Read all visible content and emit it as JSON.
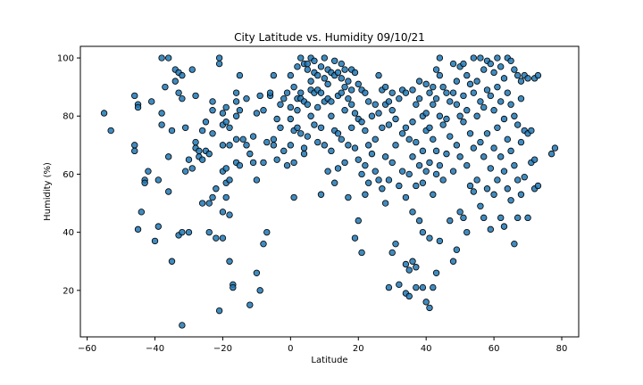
{
  "chart_data": {
    "type": "scatter",
    "title": "City Latitude vs. Humidity 09/10/21",
    "xlabel": "Latitude",
    "ylabel": "Humidity (%)",
    "xlim": [
      -62,
      85
    ],
    "ylim": [
      4,
      104
    ],
    "xticks": [
      -60,
      -40,
      -20,
      0,
      20,
      40,
      60,
      80
    ],
    "yticks": [
      20,
      40,
      60,
      80,
      100
    ],
    "grid": false,
    "marker_fill": "#1f77b4",
    "marker_edge": "#000000",
    "points": [
      [
        -55,
        81
      ],
      [
        -53,
        75
      ],
      [
        -46,
        70
      ],
      [
        -46,
        68
      ],
      [
        -46,
        87
      ],
      [
        -45,
        84
      ],
      [
        -45,
        83
      ],
      [
        -45,
        41
      ],
      [
        -44,
        47
      ],
      [
        -43,
        58
      ],
      [
        -43,
        57
      ],
      [
        -42,
        61
      ],
      [
        -41,
        85
      ],
      [
        -40,
        37
      ],
      [
        -39,
        42
      ],
      [
        -39,
        58
      ],
      [
        -38,
        100
      ],
      [
        -38,
        81
      ],
      [
        -38,
        77
      ],
      [
        -37,
        90
      ],
      [
        -36,
        100
      ],
      [
        -36,
        54
      ],
      [
        -36,
        66
      ],
      [
        -35,
        30
      ],
      [
        -35,
        75
      ],
      [
        -34,
        96
      ],
      [
        -34,
        92
      ],
      [
        -33,
        95
      ],
      [
        -33,
        88
      ],
      [
        -33,
        39
      ],
      [
        -32,
        8
      ],
      [
        -32,
        40
      ],
      [
        -32,
        94
      ],
      [
        -32,
        86
      ],
      [
        -31,
        76
      ],
      [
        -31,
        61
      ],
      [
        -30,
        65
      ],
      [
        -30,
        40
      ],
      [
        -29,
        62
      ],
      [
        -29,
        96
      ],
      [
        -28,
        87
      ],
      [
        -28,
        71
      ],
      [
        -28,
        69
      ],
      [
        -27,
        68
      ],
      [
        -27,
        66
      ],
      [
        -26,
        75
      ],
      [
        -26,
        65
      ],
      [
        -26,
        50
      ],
      [
        -25,
        78
      ],
      [
        -25,
        68
      ],
      [
        -24,
        67
      ],
      [
        -24,
        50
      ],
      [
        -24,
        40
      ],
      [
        -23,
        82
      ],
      [
        -23,
        85
      ],
      [
        -23,
        74
      ],
      [
        -23,
        52
      ],
      [
        -22,
        55
      ],
      [
        -22,
        38
      ],
      [
        -21,
        13
      ],
      [
        -21,
        100
      ],
      [
        -21,
        98
      ],
      [
        -20,
        81
      ],
      [
        -20,
        77
      ],
      [
        -20,
        70
      ],
      [
        -20,
        61
      ],
      [
        -20,
        47
      ],
      [
        -20,
        38
      ],
      [
        -19,
        83
      ],
      [
        -19,
        78
      ],
      [
        -19,
        62
      ],
      [
        -19,
        57
      ],
      [
        -19,
        52
      ],
      [
        -18,
        76
      ],
      [
        -18,
        70
      ],
      [
        -18,
        58
      ],
      [
        -18,
        46
      ],
      [
        -18,
        30
      ],
      [
        -17,
        22
      ],
      [
        -17,
        21
      ],
      [
        -16,
        88
      ],
      [
        -16,
        85
      ],
      [
        -16,
        80
      ],
      [
        -16,
        72
      ],
      [
        -16,
        64
      ],
      [
        -15,
        94
      ],
      [
        -15,
        82
      ],
      [
        -15,
        63
      ],
      [
        -14,
        72
      ],
      [
        -13,
        70
      ],
      [
        -13,
        86
      ],
      [
        -12,
        67
      ],
      [
        -12,
        15
      ],
      [
        -11,
        73
      ],
      [
        -11,
        64
      ],
      [
        -10,
        81
      ],
      [
        -10,
        58
      ],
      [
        -10,
        26
      ],
      [
        -9,
        20
      ],
      [
        -9,
        87
      ],
      [
        -8,
        82
      ],
      [
        -8,
        64
      ],
      [
        -8,
        36
      ],
      [
        -7,
        71
      ],
      [
        -7,
        40
      ],
      [
        -6,
        87
      ],
      [
        -6,
        88
      ],
      [
        -5,
        72
      ],
      [
        -5,
        94
      ],
      [
        -5,
        70
      ],
      [
        -4,
        79
      ],
      [
        -4,
        65
      ],
      [
        -3,
        76
      ],
      [
        -3,
        84
      ],
      [
        -2,
        86
      ],
      [
        -2,
        68
      ],
      [
        -1,
        88
      ],
      [
        -1,
        63
      ],
      [
        0,
        94
      ],
      [
        0,
        83
      ],
      [
        0,
        79
      ],
      [
        0,
        70
      ],
      [
        1,
        90
      ],
      [
        1,
        75
      ],
      [
        1,
        64
      ],
      [
        1,
        52
      ],
      [
        2,
        97
      ],
      [
        2,
        86
      ],
      [
        2,
        82
      ],
      [
        2,
        76
      ],
      [
        3,
        100
      ],
      [
        3,
        88
      ],
      [
        3,
        86
      ],
      [
        3,
        74
      ],
      [
        4,
        98
      ],
      [
        4,
        85
      ],
      [
        4,
        69
      ],
      [
        4,
        67
      ],
      [
        5,
        98
      ],
      [
        5,
        96
      ],
      [
        5,
        84
      ],
      [
        5,
        73
      ],
      [
        6,
        100
      ],
      [
        6,
        92
      ],
      [
        6,
        89
      ],
      [
        6,
        80
      ],
      [
        7,
        99
      ],
      [
        7,
        95
      ],
      [
        7,
        88
      ],
      [
        7,
        77
      ],
      [
        8,
        94
      ],
      [
        8,
        89
      ],
      [
        8,
        83
      ],
      [
        8,
        71
      ],
      [
        9,
        97
      ],
      [
        9,
        88
      ],
      [
        9,
        76
      ],
      [
        9,
        53
      ],
      [
        10,
        100
      ],
      [
        10,
        93
      ],
      [
        10,
        85
      ],
      [
        10,
        70
      ],
      [
        11,
        96
      ],
      [
        11,
        91
      ],
      [
        11,
        86
      ],
      [
        11,
        61
      ],
      [
        12,
        95
      ],
      [
        12,
        85
      ],
      [
        12,
        80
      ],
      [
        12,
        68
      ],
      [
        13,
        99
      ],
      [
        13,
        94
      ],
      [
        13,
        75
      ],
      [
        13,
        57
      ],
      [
        14,
        95
      ],
      [
        14,
        87
      ],
      [
        14,
        74
      ],
      [
        14,
        62
      ],
      [
        15,
        98
      ],
      [
        15,
        93
      ],
      [
        15,
        88
      ],
      [
        15,
        72
      ],
      [
        16,
        96
      ],
      [
        16,
        90
      ],
      [
        16,
        82
      ],
      [
        16,
        64
      ],
      [
        17,
        92
      ],
      [
        17,
        86
      ],
      [
        17,
        70
      ],
      [
        17,
        52
      ],
      [
        18,
        96
      ],
      [
        18,
        89
      ],
      [
        18,
        84
      ],
      [
        18,
        76
      ],
      [
        19,
        95
      ],
      [
        19,
        81
      ],
      [
        19,
        69
      ],
      [
        19,
        38
      ],
      [
        20,
        91
      ],
      [
        20,
        79
      ],
      [
        20,
        65
      ],
      [
        20,
        44
      ],
      [
        21,
        89
      ],
      [
        21,
        78
      ],
      [
        21,
        60
      ],
      [
        21,
        33
      ],
      [
        22,
        88
      ],
      [
        22,
        75
      ],
      [
        22,
        63
      ],
      [
        22,
        53
      ],
      [
        23,
        85
      ],
      [
        23,
        70
      ],
      [
        23,
        57
      ],
      [
        24,
        80
      ],
      [
        24,
        67
      ],
      [
        25,
        84
      ],
      [
        25,
        72
      ],
      [
        25,
        61
      ],
      [
        26,
        94
      ],
      [
        26,
        81
      ],
      [
        26,
        58
      ],
      [
        27,
        89
      ],
      [
        27,
        76
      ],
      [
        27,
        55
      ],
      [
        28,
        90
      ],
      [
        28,
        84
      ],
      [
        28,
        66
      ],
      [
        28,
        50
      ],
      [
        29,
        85
      ],
      [
        29,
        77
      ],
      [
        29,
        58
      ],
      [
        29,
        21
      ],
      [
        30,
        88
      ],
      [
        30,
        82
      ],
      [
        30,
        64
      ],
      [
        30,
        33
      ],
      [
        31,
        79
      ],
      [
        31,
        70
      ],
      [
        31,
        36
      ],
      [
        32,
        86
      ],
      [
        32,
        56
      ],
      [
        32,
        22
      ],
      [
        33,
        89
      ],
      [
        33,
        74
      ],
      [
        33,
        61
      ],
      [
        34,
        88
      ],
      [
        34,
        76
      ],
      [
        34,
        52
      ],
      [
        34,
        29
      ],
      [
        34,
        19
      ],
      [
        35,
        72
      ],
      [
        35,
        60
      ],
      [
        35,
        27
      ],
      [
        35,
        18
      ],
      [
        36,
        89
      ],
      [
        36,
        78
      ],
      [
        36,
        66
      ],
      [
        36,
        47
      ],
      [
        36,
        30
      ],
      [
        37,
        84
      ],
      [
        37,
        71
      ],
      [
        37,
        56
      ],
      [
        37,
        28
      ],
      [
        37,
        21
      ],
      [
        38,
        92
      ],
      [
        38,
        86
      ],
      [
        38,
        63
      ],
      [
        38,
        44
      ],
      [
        39,
        80
      ],
      [
        39,
        68
      ],
      [
        39,
        57
      ],
      [
        39,
        40
      ],
      [
        39,
        21
      ],
      [
        40,
        91
      ],
      [
        40,
        81
      ],
      [
        40,
        75
      ],
      [
        40,
        61
      ],
      [
        40,
        16
      ],
      [
        41,
        88
      ],
      [
        41,
        76
      ],
      [
        41,
        64
      ],
      [
        41,
        38
      ],
      [
        41,
        14
      ],
      [
        42,
        90
      ],
      [
        42,
        84
      ],
      [
        42,
        72
      ],
      [
        42,
        53
      ],
      [
        42,
        21
      ],
      [
        43,
        96
      ],
      [
        43,
        86
      ],
      [
        43,
        68
      ],
      [
        43,
        60
      ],
      [
        43,
        26
      ],
      [
        44,
        100
      ],
      [
        44,
        94
      ],
      [
        44,
        80
      ],
      [
        44,
        63
      ],
      [
        44,
        37
      ],
      [
        45,
        90
      ],
      [
        45,
        77
      ],
      [
        45,
        58
      ],
      [
        46,
        88
      ],
      [
        46,
        79
      ],
      [
        46,
        67
      ],
      [
        47,
        85
      ],
      [
        47,
        73
      ],
      [
        47,
        44
      ],
      [
        48,
        98
      ],
      [
        48,
        88
      ],
      [
        48,
        61
      ],
      [
        48,
        30
      ],
      [
        49,
        92
      ],
      [
        49,
        84
      ],
      [
        49,
        70
      ],
      [
        49,
        34
      ],
      [
        50,
        97
      ],
      [
        50,
        80
      ],
      [
        50,
        66
      ],
      [
        50,
        47
      ],
      [
        51,
        98
      ],
      [
        51,
        87
      ],
      [
        51,
        78
      ],
      [
        51,
        45
      ],
      [
        52,
        94
      ],
      [
        52,
        82
      ],
      [
        52,
        63
      ],
      [
        52,
        40
      ],
      [
        53,
        91
      ],
      [
        53,
        74
      ],
      [
        53,
        56
      ],
      [
        54,
        100
      ],
      [
        54,
        88
      ],
      [
        54,
        69
      ],
      [
        54,
        54
      ],
      [
        55,
        92
      ],
      [
        55,
        80
      ],
      [
        55,
        58
      ],
      [
        56,
        100
      ],
      [
        56,
        85
      ],
      [
        56,
        71
      ],
      [
        56,
        49
      ],
      [
        57,
        96
      ],
      [
        57,
        83
      ],
      [
        57,
        66
      ],
      [
        57,
        45
      ],
      [
        58,
        99
      ],
      [
        58,
        89
      ],
      [
        58,
        74
      ],
      [
        58,
        55
      ],
      [
        59,
        98
      ],
      [
        59,
        87
      ],
      [
        59,
        62
      ],
      [
        59,
        41
      ],
      [
        60,
        95
      ],
      [
        60,
        82
      ],
      [
        60,
        69
      ],
      [
        60,
        53
      ],
      [
        61,
        100
      ],
      [
        61,
        90
      ],
      [
        61,
        76
      ],
      [
        61,
        58
      ],
      [
        62,
        97
      ],
      [
        62,
        85
      ],
      [
        62,
        66
      ],
      [
        62,
        45
      ],
      [
        63,
        93
      ],
      [
        63,
        79
      ],
      [
        63,
        61
      ],
      [
        63,
        42
      ],
      [
        64,
        100
      ],
      [
        64,
        88
      ],
      [
        64,
        72
      ],
      [
        64,
        55
      ],
      [
        65,
        99
      ],
      [
        65,
        84
      ],
      [
        65,
        68
      ],
      [
        65,
        51
      ],
      [
        66,
        96
      ],
      [
        66,
        80
      ],
      [
        66,
        63
      ],
      [
        66,
        36
      ],
      [
        67,
        94
      ],
      [
        67,
        77
      ],
      [
        67,
        58
      ],
      [
        67,
        45
      ],
      [
        68,
        92
      ],
      [
        68,
        86
      ],
      [
        68,
        71
      ],
      [
        68,
        53
      ],
      [
        69,
        94
      ],
      [
        69,
        75
      ],
      [
        69,
        59
      ],
      [
        70,
        93
      ],
      [
        70,
        74
      ],
      [
        70,
        45
      ],
      [
        71,
        75
      ],
      [
        71,
        64
      ],
      [
        72,
        93
      ],
      [
        72,
        65
      ],
      [
        72,
        55
      ],
      [
        73,
        94
      ],
      [
        73,
        56
      ],
      [
        77,
        67
      ],
      [
        78,
        69
      ]
    ]
  }
}
